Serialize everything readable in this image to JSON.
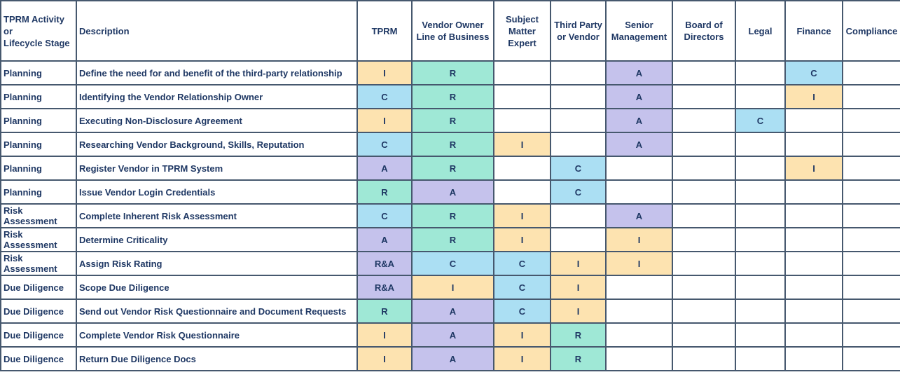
{
  "colors": {
    "I": "#fde3b0",
    "R": "#9fe8d6",
    "A": "#c5c2ec",
    "C": "#abdff3",
    "R&A": "#c5c2ec",
    "text": "#1f3864",
    "border": "#46586e"
  },
  "header": {
    "stage": [
      "TPRM Activity",
      "or",
      "Lifecycle Stage"
    ],
    "description": "Description",
    "roles": [
      [
        "TPRM"
      ],
      [
        "Vendor Owner",
        "Line of  Business"
      ],
      [
        "Subject",
        "Matter",
        "Expert"
      ],
      [
        "Third Party",
        "or Vendor"
      ],
      [
        "Senior",
        "Management"
      ],
      [
        "Board of",
        "Directors"
      ],
      [
        "Legal"
      ],
      [
        "Finance"
      ],
      [
        "Compliance"
      ]
    ]
  },
  "rows": [
    {
      "stage": [
        "Planning"
      ],
      "description": "Define the need for and benefit of the third-party relationship",
      "values": [
        "I",
        "R",
        "",
        "",
        "A",
        "",
        "",
        "C",
        ""
      ]
    },
    {
      "stage": [
        "Planning"
      ],
      "description": "Identifying the Vendor Relationship Owner",
      "values": [
        "C",
        "R",
        "",
        "",
        "A",
        "",
        "",
        "I",
        ""
      ]
    },
    {
      "stage": [
        "Planning"
      ],
      "description": "Executing Non-Disclosure Agreement",
      "values": [
        "I",
        "R",
        "",
        "",
        "A",
        "",
        "C",
        "",
        ""
      ]
    },
    {
      "stage": [
        "Planning"
      ],
      "description": "Researching Vendor Background, Skills, Reputation",
      "values": [
        "C",
        "R",
        "I",
        "",
        "A",
        "",
        "",
        "",
        ""
      ]
    },
    {
      "stage": [
        "Planning"
      ],
      "description": "Register Vendor in TPRM System",
      "values": [
        "A",
        "R",
        "",
        "C",
        "",
        "",
        "",
        "I",
        ""
      ]
    },
    {
      "stage": [
        "Planning"
      ],
      "description": "Issue Vendor Login Credentials",
      "values": [
        "R",
        "A",
        "",
        "C",
        "",
        "",
        "",
        "",
        ""
      ]
    },
    {
      "stage": [
        "Risk",
        "Assessment"
      ],
      "description": "Complete Inherent Risk Assessment",
      "values": [
        "C",
        "R",
        "I",
        "",
        "A",
        "",
        "",
        "",
        ""
      ]
    },
    {
      "stage": [
        "Risk",
        "Assessment"
      ],
      "description": "Determine Criticality",
      "values": [
        "A",
        "R",
        "I",
        "",
        "I",
        "",
        "",
        "",
        ""
      ]
    },
    {
      "stage": [
        "Risk",
        "Assessment"
      ],
      "description": "Assign Risk Rating",
      "values": [
        "R&A",
        "C",
        "C",
        "I",
        "I",
        "",
        "",
        "",
        ""
      ]
    },
    {
      "stage": [
        "Due Diligence"
      ],
      "description": "Scope Due Diligence",
      "values": [
        "R&A",
        "I",
        "C",
        "I",
        "",
        "",
        "",
        "",
        ""
      ]
    },
    {
      "stage": [
        "Due Diligence"
      ],
      "description": "Send out Vendor Risk Questionnaire and Document Requests",
      "values": [
        "R",
        "A",
        "C",
        "I",
        "",
        "",
        "",
        "",
        ""
      ]
    },
    {
      "stage": [
        "Due Diligence"
      ],
      "description": "Complete Vendor Risk Questionnaire",
      "values": [
        "I",
        "A",
        "I",
        "R",
        "",
        "",
        "",
        "",
        ""
      ]
    },
    {
      "stage": [
        "Due Diligence"
      ],
      "description": "Return Due Diligence Docs",
      "values": [
        "I",
        "A",
        "I",
        "R",
        "",
        "",
        "",
        "",
        ""
      ]
    }
  ]
}
